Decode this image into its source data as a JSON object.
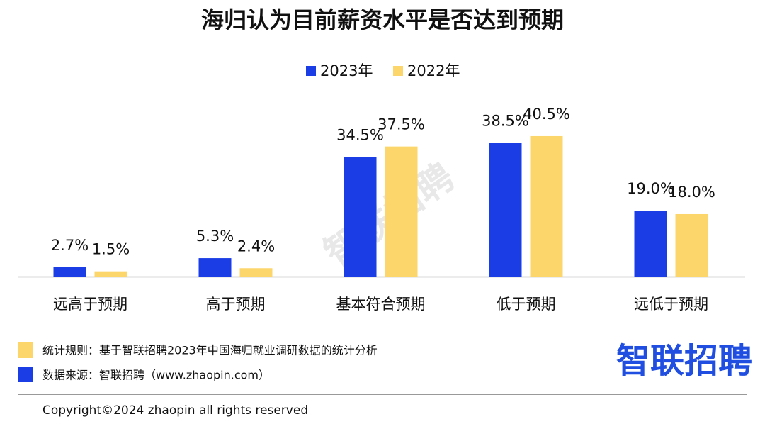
{
  "chart_data": {
    "type": "bar",
    "title": "海归认为目前薪资水平是否达到预期",
    "categories": [
      "远高于预期",
      "高于预期",
      "基本符合预期",
      "低于预期",
      "远低于预期"
    ],
    "series": [
      {
        "name": "2023年",
        "color": "#1a3de6",
        "values": [
          2.7,
          5.3,
          34.5,
          38.5,
          19.0
        ],
        "value_labels": [
          "2.7%",
          "5.3%",
          "34.5%",
          "38.5%",
          "19.0%"
        ]
      },
      {
        "name": "2022年",
        "color": "#fdd66b",
        "values": [
          1.5,
          2.4,
          37.5,
          40.5,
          18.0
        ],
        "value_labels": [
          "1.5%",
          "2.4%",
          "37.5%",
          "40.5%",
          "18.0%"
        ]
      }
    ],
    "legend": "top"
  },
  "footer": {
    "rule": "统计规则：基于智联招聘2023年中国海归就业调研数据的统计分析",
    "source": "数据来源：智联招聘（www.zhaopin.com）",
    "copyright": "Copyright©2024 zhaopin all rights reserved",
    "logo": "智联招聘",
    "watermark": "智联招聘"
  }
}
